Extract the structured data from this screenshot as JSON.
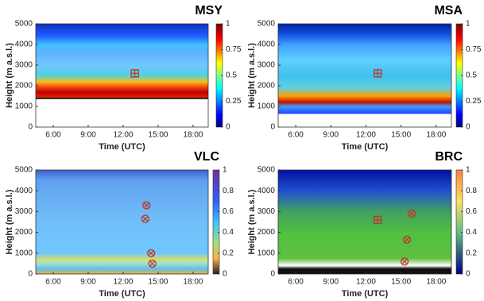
{
  "chart_data": [
    {
      "type": "heatmap",
      "title": "MSY",
      "xlabel": "Time (UTC)",
      "ylabel": "Height (m a.s.l.)",
      "xlim": [
        4.5,
        19.3
      ],
      "xticks": [
        {
          "value": 6,
          "label": "6:00"
        },
        {
          "value": 9,
          "label": "9:00"
        },
        {
          "value": 12,
          "label": "12:00"
        },
        {
          "value": 15,
          "label": "15:00"
        },
        {
          "value": 18,
          "label": "18:00"
        }
      ],
      "ylim": [
        0,
        5000
      ],
      "yticks": [
        0,
        1000,
        2000,
        3000,
        4000,
        5000
      ],
      "clim": [
        0,
        1
      ],
      "cticks": [
        0,
        0.25,
        0.5,
        0.75,
        1
      ],
      "markers": [
        {
          "shape": "square",
          "x": 13.0,
          "y": 2600
        }
      ]
    },
    {
      "type": "heatmap",
      "title": "MSA",
      "xlabel": "Time (UTC)",
      "ylabel": "Height (m a.s.l.)",
      "xlim": [
        4.5,
        19.3
      ],
      "xticks": [
        {
          "value": 6,
          "label": "6:00"
        },
        {
          "value": 9,
          "label": "9:00"
        },
        {
          "value": 12,
          "label": "12:00"
        },
        {
          "value": 15,
          "label": "15:00"
        },
        {
          "value": 18,
          "label": "18:00"
        }
      ],
      "ylim": [
        0,
        5000
      ],
      "yticks": [
        0,
        1000,
        2000,
        3000,
        4000,
        5000
      ],
      "clim": [
        0,
        1
      ],
      "cticks": [
        0,
        0.25,
        0.5,
        0.75,
        1
      ],
      "markers": [
        {
          "shape": "square",
          "x": 13.0,
          "y": 2600
        }
      ]
    },
    {
      "type": "heatmap",
      "title": "VLC",
      "xlabel": "Time (UTC)",
      "ylabel": "Height (m a.s.l.)",
      "xlim": [
        4.5,
        19.3
      ],
      "xticks": [
        {
          "value": 6,
          "label": "6:00"
        },
        {
          "value": 9,
          "label": "9:00"
        },
        {
          "value": 12,
          "label": "12:00"
        },
        {
          "value": 15,
          "label": "15:00"
        },
        {
          "value": 18,
          "label": "18:00"
        }
      ],
      "ylim": [
        0,
        5000
      ],
      "yticks": [
        0,
        1000,
        2000,
        3000,
        4000,
        5000
      ],
      "clim": [
        0,
        1
      ],
      "cticks": [
        0,
        0.2,
        0.4,
        0.6,
        0.8,
        1
      ],
      "markers": [
        {
          "shape": "circle",
          "x": 14.0,
          "y": 3300
        },
        {
          "shape": "circle",
          "x": 13.9,
          "y": 2650
        },
        {
          "shape": "circle",
          "x": 14.4,
          "y": 1000
        },
        {
          "shape": "circle",
          "x": 14.5,
          "y": 500
        }
      ]
    },
    {
      "type": "heatmap",
      "title": "BRC",
      "xlabel": "Time (UTC)",
      "ylabel": "Height (m a.s.l.)",
      "xlim": [
        4.5,
        19.3
      ],
      "xticks": [
        {
          "value": 6,
          "label": "6:00"
        },
        {
          "value": 9,
          "label": "9:00"
        },
        {
          "value": 12,
          "label": "12:00"
        },
        {
          "value": 15,
          "label": "15:00"
        },
        {
          "value": 18,
          "label": "18:00"
        }
      ],
      "ylim": [
        0,
        5000
      ],
      "yticks": [
        0,
        1000,
        2000,
        3000,
        4000,
        5000
      ],
      "clim": [
        0,
        1
      ],
      "cticks": [
        0,
        0.2,
        0.4,
        0.6,
        0.8,
        1
      ],
      "markers": [
        {
          "shape": "square",
          "x": 13.0,
          "y": 2600
        },
        {
          "shape": "circle",
          "x": 15.9,
          "y": 2900
        },
        {
          "shape": "circle",
          "x": 15.5,
          "y": 1650
        },
        {
          "shape": "circle",
          "x": 15.3,
          "y": 600
        }
      ]
    }
  ]
}
